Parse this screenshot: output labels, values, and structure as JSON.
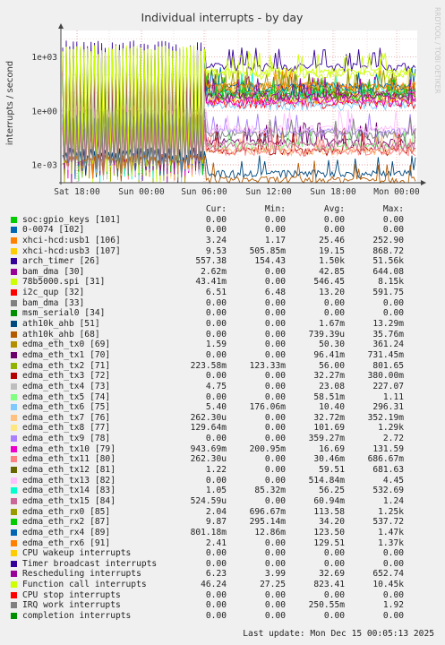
{
  "chart_data": {
    "type": "line",
    "title": "Individual interrupts - by day",
    "ylabel": "interrupts / second",
    "y_scale": "log",
    "ylim": [
      0.0001,
      30000
    ],
    "y_ticks": [
      "1e-03",
      "1e+00",
      "1e+03"
    ],
    "x_ticks": [
      "Sat 18:00",
      "Sun 00:00",
      "Sun 06:00",
      "Sun 12:00",
      "Sun 18:00",
      "Mon 00:00"
    ],
    "grid": true,
    "watermark": "RRDTOOL / TOBI OETIKER",
    "columns": [
      "Cur:",
      "Min:",
      "Avg:",
      "Max:"
    ],
    "series": [
      {
        "name": "soc:gpio_keys [101]",
        "color": "#00cc00",
        "cur": "0.00",
        "min": "0.00",
        "avg": "0.00",
        "max": "0.00"
      },
      {
        "name": "0-0074 [102]",
        "color": "#0066b3",
        "cur": "0.00",
        "min": "0.00",
        "avg": "0.00",
        "max": "0.00"
      },
      {
        "name": "xhci-hcd:usb1 [106]",
        "color": "#ff8000",
        "cur": "3.24",
        "min": "1.17",
        "avg": "25.46",
        "max": "252.90"
      },
      {
        "name": "xhci-hcd:usb3 [107]",
        "color": "#ffcc00",
        "cur": "9.53",
        "min": "505.85m",
        "avg": "19.15",
        "max": "868.72"
      },
      {
        "name": "arch_timer [26]",
        "color": "#330099",
        "cur": "557.38",
        "min": "154.43",
        "avg": "1.50k",
        "max": "51.56k"
      },
      {
        "name": "bam_dma [30]",
        "color": "#990099",
        "cur": "2.62m",
        "min": "0.00",
        "avg": "42.85",
        "max": "644.08"
      },
      {
        "name": "78b5000.spi [31]",
        "color": "#ccff00",
        "cur": "43.41m",
        "min": "0.00",
        "avg": "546.45",
        "max": "8.15k"
      },
      {
        "name": "i2c_qup [32]",
        "color": "#ff0000",
        "cur": "6.51",
        "min": "6.48",
        "avg": "13.20",
        "max": "591.75"
      },
      {
        "name": "bam_dma [33]",
        "color": "#808080",
        "cur": "0.00",
        "min": "0.00",
        "avg": "0.00",
        "max": "0.00"
      },
      {
        "name": "msm_serial0 [34]",
        "color": "#008f00",
        "cur": "0.00",
        "min": "0.00",
        "avg": "0.00",
        "max": "0.00"
      },
      {
        "name": "ath10k_ahb [51]",
        "color": "#00487d",
        "cur": "0.00",
        "min": "0.00",
        "avg": "1.67m",
        "max": "13.29m"
      },
      {
        "name": "ath10k_ahb [68]",
        "color": "#b35a00",
        "cur": "0.00",
        "min": "0.00",
        "avg": "739.39u",
        "max": "35.76m"
      },
      {
        "name": "edma_eth_tx0 [69]",
        "color": "#b38f00",
        "cur": "1.59",
        "min": "0.00",
        "avg": "50.30",
        "max": "361.24"
      },
      {
        "name": "edma_eth_tx1 [70]",
        "color": "#6b006b",
        "cur": "0.00",
        "min": "0.00",
        "avg": "96.41m",
        "max": "731.45m"
      },
      {
        "name": "edma_eth_tx2 [71]",
        "color": "#8fb300",
        "cur": "223.58m",
        "min": "123.33m",
        "avg": "56.00",
        "max": "801.65"
      },
      {
        "name": "edma_eth_tx3 [72]",
        "color": "#b30000",
        "cur": "0.00",
        "min": "0.00",
        "avg": "32.27m",
        "max": "380.00m"
      },
      {
        "name": "edma_eth_tx4 [73]",
        "color": "#bebebe",
        "cur": "4.75",
        "min": "0.00",
        "avg": "23.08",
        "max": "227.07"
      },
      {
        "name": "edma_eth_tx5 [74]",
        "color": "#80ff80",
        "cur": "0.00",
        "min": "0.00",
        "avg": "58.51m",
        "max": "1.11"
      },
      {
        "name": "edma_eth_tx6 [75]",
        "color": "#80c9ff",
        "cur": "5.40",
        "min": "176.06m",
        "avg": "10.40",
        "max": "296.31"
      },
      {
        "name": "edma_eth_tx7 [76]",
        "color": "#ffc080",
        "cur": "262.30u",
        "min": "0.00",
        "avg": "32.72m",
        "max": "352.19m"
      },
      {
        "name": "edma_eth_tx8 [77]",
        "color": "#ffe680",
        "cur": "129.64m",
        "min": "0.00",
        "avg": "101.69",
        "max": "1.29k"
      },
      {
        "name": "edma_eth_tx9 [78]",
        "color": "#aa80ff",
        "cur": "0.00",
        "min": "0.00",
        "avg": "359.27m",
        "max": "2.72"
      },
      {
        "name": "edma_eth_tx10 [79]",
        "color": "#ee00cc",
        "cur": "943.69m",
        "min": "200.95m",
        "avg": "16.69",
        "max": "131.59"
      },
      {
        "name": "edma_eth_tx11 [80]",
        "color": "#ff8080",
        "cur": "262.30u",
        "min": "0.00",
        "avg": "30.46m",
        "max": "686.67m"
      },
      {
        "name": "edma_eth_tx12 [81]",
        "color": "#666600",
        "cur": "1.22",
        "min": "0.00",
        "avg": "59.51",
        "max": "681.63"
      },
      {
        "name": "edma_eth_tx13 [82]",
        "color": "#ffbfff",
        "cur": "0.00",
        "min": "0.00",
        "avg": "514.84m",
        "max": "4.45"
      },
      {
        "name": "edma_eth_tx14 [83]",
        "color": "#00ffcc",
        "cur": "1.05",
        "min": "85.32m",
        "avg": "56.25",
        "max": "532.69"
      },
      {
        "name": "edma_eth_tx15 [84]",
        "color": "#cc6699",
        "cur": "524.59u",
        "min": "0.00",
        "avg": "60.94m",
        "max": "1.24"
      },
      {
        "name": "edma_eth_rx0 [85]",
        "color": "#999900",
        "cur": "2.04",
        "min": "696.67m",
        "avg": "113.58",
        "max": "1.25k"
      },
      {
        "name": "edma_eth_rx2 [87]",
        "color": "#00cc00",
        "cur": "9.87",
        "min": "295.14m",
        "avg": "34.20",
        "max": "537.72"
      },
      {
        "name": "edma_eth_rx4 [89]",
        "color": "#0066b3",
        "cur": "801.18m",
        "min": "12.86m",
        "avg": "123.50",
        "max": "1.47k"
      },
      {
        "name": "edma_eth_rx6 [91]",
        "color": "#ff8000",
        "cur": "2.41",
        "min": "0.00",
        "avg": "129.51",
        "max": "1.37k"
      },
      {
        "name": "CPU wakeup interrupts",
        "color": "#ffcc00",
        "cur": "0.00",
        "min": "0.00",
        "avg": "0.00",
        "max": "0.00"
      },
      {
        "name": "Timer broadcast interrupts",
        "color": "#330099",
        "cur": "0.00",
        "min": "0.00",
        "avg": "0.00",
        "max": "0.00"
      },
      {
        "name": "Rescheduling interrupts",
        "color": "#990099",
        "cur": "6.23",
        "min": "3.99",
        "avg": "32.69",
        "max": "652.74"
      },
      {
        "name": "Function call interrupts",
        "color": "#ccff00",
        "cur": "46.24",
        "min": "27.25",
        "avg": "823.41",
        "max": "10.45k"
      },
      {
        "name": "CPU stop interrupts",
        "color": "#ff0000",
        "cur": "0.00",
        "min": "0.00",
        "avg": "0.00",
        "max": "0.00"
      },
      {
        "name": "IRQ work interrupts",
        "color": "#808080",
        "cur": "0.00",
        "min": "0.00",
        "avg": "250.55m",
        "max": "1.92"
      },
      {
        "name": "completion interrupts",
        "color": "#008f00",
        "cur": "0.00",
        "min": "0.00",
        "avg": "0.00",
        "max": "0.00"
      }
    ]
  },
  "footer": "Last update: Mon Dec 15 00:05:13 2025"
}
